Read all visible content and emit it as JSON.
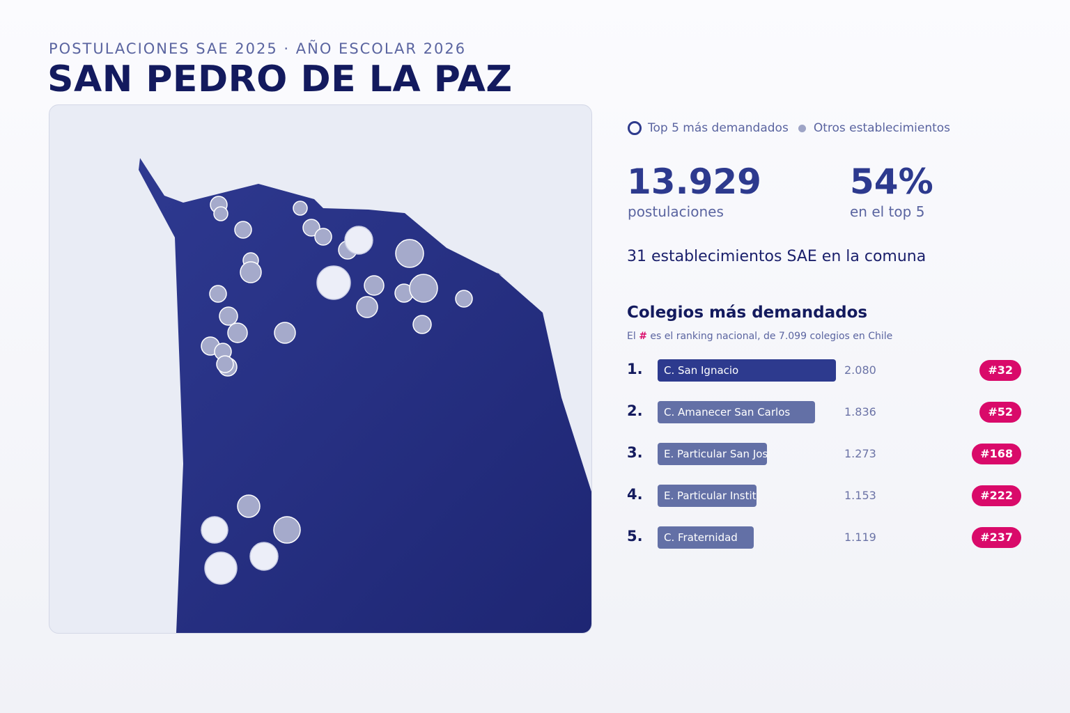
{
  "header": {
    "subtitle": "POSTULACIONES SAE 2025 · AÑO ESCOLAR 2026",
    "title": "SAN PEDRO DE LA PAZ"
  },
  "legend": {
    "top5": "Top 5 más demandados",
    "others": "Otros establecimientos"
  },
  "stats": {
    "applications_value": "13.929",
    "applications_label": "postulaciones",
    "top5_share_value": "54%",
    "top5_share_label": "en el top 5",
    "schools_count_text": "31 establecimientos SAE en la comuna"
  },
  "ranking": {
    "title": "Colegios más demandados",
    "note_prefix": "El",
    "note_hash": "#",
    "note_suffix": "es el ranking nacional, de 7.099 colegios en Chile",
    "max_applications": 2080,
    "items": [
      {
        "rank": "1.",
        "name": "C. San Ignacio",
        "applications": 2080,
        "applications_label": "2.080",
        "national_rank": "#32"
      },
      {
        "rank": "2.",
        "name": "C. Amanecer San Carlos",
        "applications": 1836,
        "applications_label": "1.836",
        "national_rank": "#52"
      },
      {
        "rank": "3.",
        "name": "E. Particular San José",
        "applications": 1273,
        "applications_label": "1.273",
        "national_rank": "#168"
      },
      {
        "rank": "4.",
        "name": "E. Particular Instituto",
        "applications": 1153,
        "applications_label": "1.153",
        "national_rank": "#222"
      },
      {
        "rank": "5.",
        "name": "C. Fraternidad",
        "applications": 1119,
        "applications_label": "1.119",
        "national_rank": "#237"
      }
    ]
  },
  "colors": {
    "territory": "#2b3488",
    "top5_fill": "#eceef8",
    "other_fill": "#a5aacb",
    "bar_top": "#2d3a8e",
    "bar_other": "#6370a6",
    "badge": "#d90a6a"
  }
}
